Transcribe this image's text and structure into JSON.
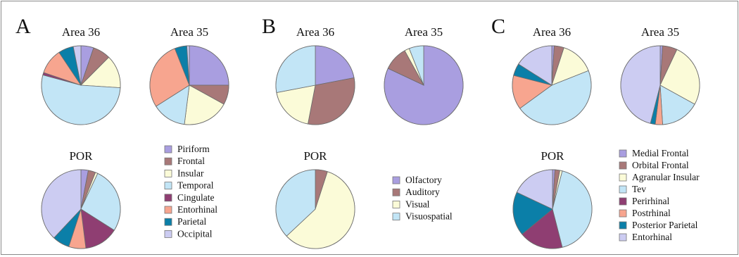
{
  "colors": {
    "slice_stroke": "#6b6b6b",
    "legend_stroke": "#777777"
  },
  "legends": [
    {
      "items": [
        {
          "label": "Piriform",
          "color": "#a99ee0"
        },
        {
          "label": "Frontal",
          "color": "#a87878"
        },
        {
          "label": "Insular",
          "color": "#fbfbd8"
        },
        {
          "label": "Temporal",
          "color": "#c2e5f6"
        },
        {
          "label": "Cingulate",
          "color": "#8f3e72"
        },
        {
          "label": "Entorhinal",
          "color": "#f7a58f"
        },
        {
          "label": "Parietal",
          "color": "#0b7fa8"
        },
        {
          "label": "Occipital",
          "color": "#ccccf2"
        }
      ]
    },
    {
      "items": [
        {
          "label": "Olfactory",
          "color": "#a99ee0"
        },
        {
          "label": "Auditory",
          "color": "#a87878"
        },
        {
          "label": "Visual",
          "color": "#fbfbd8"
        },
        {
          "label": "Visuospatial",
          "color": "#c2e5f6"
        }
      ]
    },
    {
      "items": [
        {
          "label": "Medial Frontal",
          "color": "#a99ee0"
        },
        {
          "label": "Orbital Frontal",
          "color": "#a87878"
        },
        {
          "label": "Agranular Insular",
          "color": "#fbfbd8"
        },
        {
          "label": "Tev",
          "color": "#c2e5f6"
        },
        {
          "label": "Perirhinal",
          "color": "#8f3e72"
        },
        {
          "label": "Postrhinal",
          "color": "#f7a58f"
        },
        {
          "label": "Posterior Parietal",
          "color": "#0b7fa8"
        },
        {
          "label": "Entorhinal",
          "color": "#ccccf2"
        }
      ]
    }
  ],
  "chart_data": [
    {
      "panel": "A",
      "title": "Area 36",
      "type": "pie",
      "legend_group": 0,
      "values": [
        5,
        7,
        13,
        51,
        1,
        10,
        6,
        3
      ]
    },
    {
      "panel": "A",
      "title": "Area 35",
      "type": "pie",
      "legend_group": 0,
      "values": [
        25,
        8,
        19,
        14,
        0,
        28,
        5,
        1
      ]
    },
    {
      "panel": "A",
      "title": "POR",
      "type": "pie",
      "legend_group": 0,
      "values": [
        3,
        3,
        1,
        27,
        14,
        7,
        7,
        38
      ]
    },
    {
      "panel": "B",
      "title": "Area 36",
      "type": "pie",
      "legend_group": 1,
      "values": [
        22,
        31,
        19,
        28
      ]
    },
    {
      "panel": "B",
      "title": "Area 35",
      "type": "pie",
      "legend_group": 1,
      "values": [
        82,
        10,
        2,
        6
      ]
    },
    {
      "panel": "B",
      "title": "POR",
      "type": "pie",
      "legend_group": 1,
      "values": [
        0,
        5,
        58,
        37
      ]
    },
    {
      "panel": "C",
      "title": "Area 36",
      "type": "pie",
      "legend_group": 2,
      "values": [
        1,
        4,
        14,
        46,
        0,
        14,
        5,
        16
      ]
    },
    {
      "panel": "C",
      "title": "Area 35",
      "type": "pie",
      "legend_group": 2,
      "values": [
        1,
        6,
        26,
        16,
        0,
        3,
        2,
        46
      ]
    },
    {
      "panel": "C",
      "title": "POR",
      "type": "pie",
      "legend_group": 2,
      "values": [
        1,
        2,
        1,
        42,
        18,
        0,
        18,
        18
      ]
    }
  ]
}
